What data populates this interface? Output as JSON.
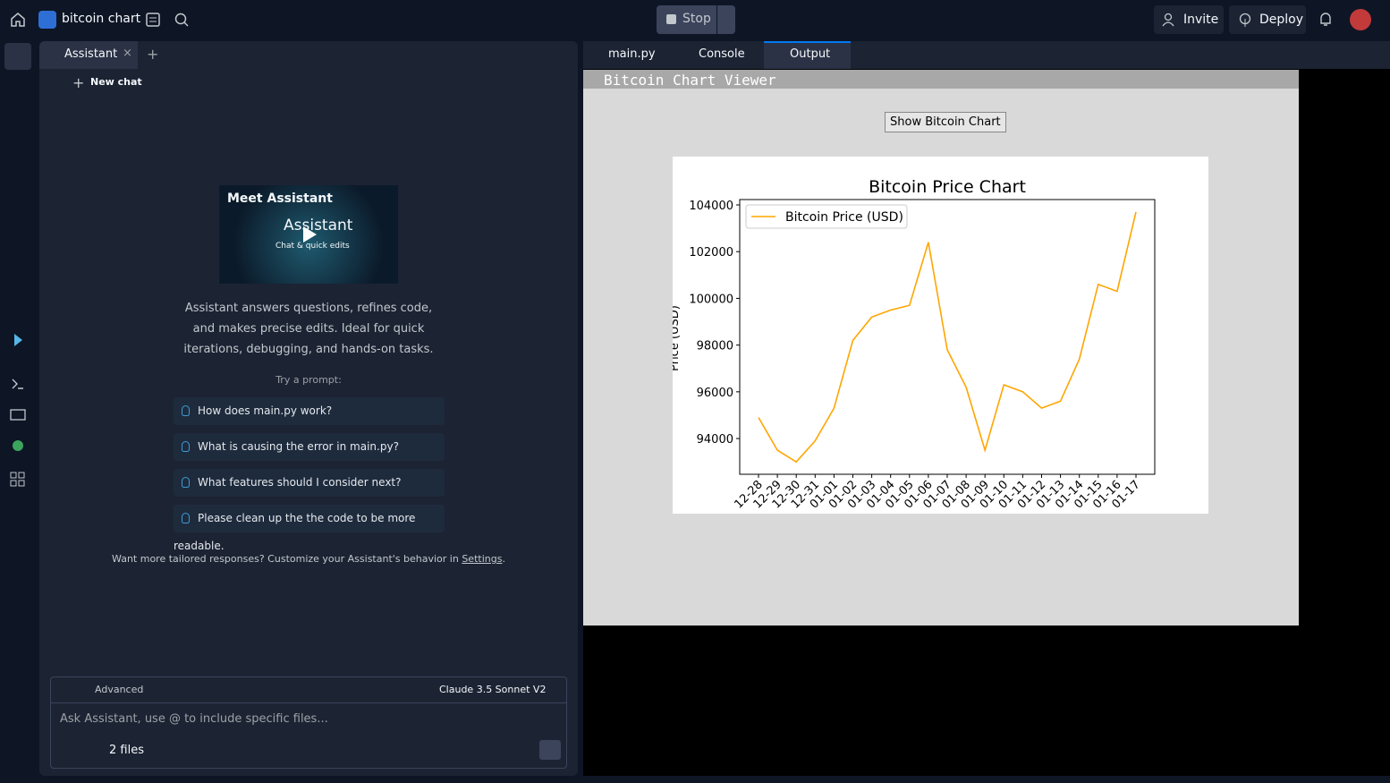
{
  "topbar": {
    "project": "bitcoin chart",
    "stop": "Stop",
    "invite": "Invite",
    "deploy": "Deploy"
  },
  "assistant": {
    "tab": "Assistant",
    "new_chat": "New chat",
    "video_title": "Meet Assistant",
    "video_brand": "Assistant",
    "video_sub": "Chat & quick edits",
    "description": "Assistant answers questions, refines code, and makes precise edits. Ideal for quick iterations, debugging, and hands-on tasks.",
    "try": "Try a prompt:",
    "prompts": [
      "How does main.py work?",
      "What is causing the error in main.py?",
      "What features should I consider next?",
      "Please clean up the the code to be more readable."
    ],
    "tailored": "Want more tailored responses? Customize your Assistant's behavior in",
    "settings_link": "Settings",
    "tailored_end": ".",
    "mode": "Advanced",
    "model": "Claude 3.5 Sonnet V2",
    "placeholder": "Ask Assistant, use @ to include specific files...",
    "files": "2 files"
  },
  "editor_tabs": [
    "main.py",
    "Console",
    "Output"
  ],
  "window": {
    "title": "Bitcoin Chart Viewer",
    "button": "Show Bitcoin Chart"
  },
  "chart_data": {
    "type": "line",
    "title": "Bitcoin Price Chart",
    "ylabel": "Price (USD)",
    "categories": [
      "12-28",
      "12-29",
      "12-30",
      "12-31",
      "01-01",
      "01-02",
      "01-03",
      "01-04",
      "01-05",
      "01-06",
      "01-07",
      "01-08",
      "01-09",
      "01-10",
      "01-11",
      "01-12",
      "01-13",
      "01-14",
      "01-15",
      "01-16",
      "01-17"
    ],
    "series": [
      {
        "name": "Bitcoin Price (USD)",
        "color": "#ffa500",
        "values": [
          94900,
          93500,
          93000,
          93900,
          95300,
          98200,
          99200,
          99500,
          99700,
          102400,
          97800,
          96200,
          93500,
          96300,
          96000,
          95300,
          95600,
          97400,
          100600,
          100300,
          103700
        ]
      }
    ],
    "ylim": [
      92470,
      104230
    ],
    "yticks": [
      94000,
      96000,
      98000,
      100000,
      102000,
      104000
    ],
    "legend": "upper left"
  }
}
